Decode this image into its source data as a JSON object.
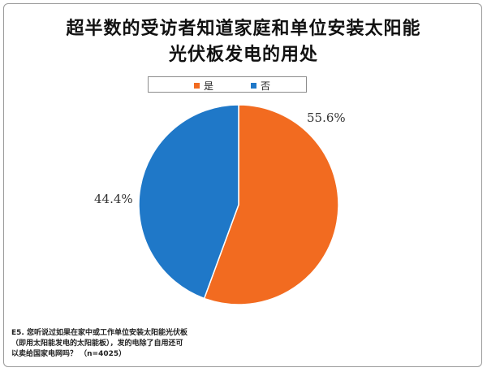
{
  "title_lines": [
    "超半数的受访者知道家庭和单位安装太阳能",
    "光伏板发电的用处"
  ],
  "footnote_lines": [
    "E5. 您听说过如果在家中或工作单位安装太阳能光伏板",
    "（即用太阳能发电的太阳能板），发的电除了自用还可",
    "以卖给国家电网吗？ （n=4025）"
  ],
  "chart_data": {
    "type": "pie",
    "title": "超半数的受访者知道家庭和单位安装太阳能光伏板发电的用处",
    "legend_position": "top",
    "series": [
      {
        "name": "是",
        "value": 55.6,
        "label": "55.6%",
        "color": "#F26B20"
      },
      {
        "name": "否",
        "value": 44.4,
        "label": "44.4%",
        "color": "#1F78C8"
      }
    ]
  }
}
